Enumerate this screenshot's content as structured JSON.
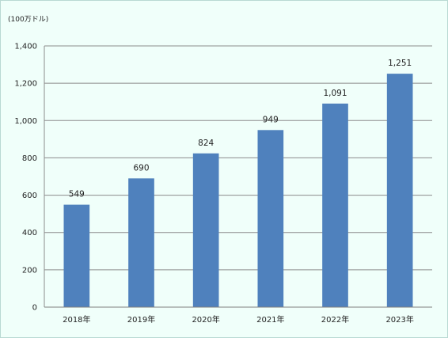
{
  "chart_data": {
    "type": "bar",
    "title": "",
    "unit_label": "(100万ドル)",
    "xlabel": "",
    "ylabel": "",
    "categories": [
      "2018年",
      "2019年",
      "2020年",
      "2021年",
      "2022年",
      "2023年"
    ],
    "values": [
      549,
      690,
      824,
      949,
      1091,
      1251
    ],
    "data_labels": [
      "549",
      "690",
      "824",
      "949",
      "1,091",
      "1,251"
    ],
    "ylim": [
      0,
      1400
    ],
    "yticks": [
      0,
      200,
      400,
      600,
      800,
      1000,
      1200,
      1400
    ],
    "ytick_labels": [
      "0",
      "200",
      "400",
      "600",
      "800",
      "1,000",
      "1,200",
      "1,400"
    ],
    "grid": true,
    "bar_color": "#4f81bd",
    "grid_color": "#8c8c8c"
  }
}
